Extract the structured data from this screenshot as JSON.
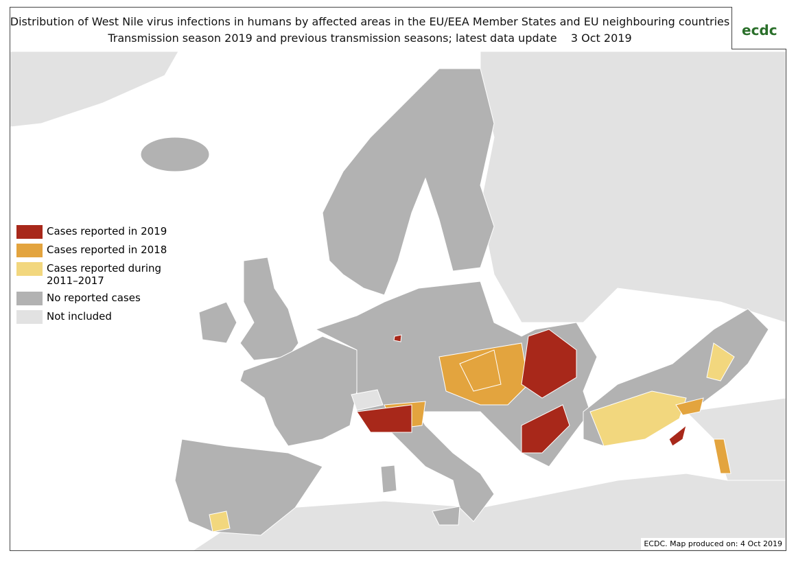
{
  "header": {
    "title": "Distribution of West Nile virus infections in humans by affected areas in the EU/EEA Member States and EU neighbouring countries",
    "subtitle": "Transmission season 2019 and previous transmission seasons; latest data update",
    "date": "3 Oct 2019"
  },
  "logo": {
    "text": "ecdc"
  },
  "legend": {
    "items": [
      {
        "label": "Cases reported in 2019",
        "color": "#a8281a"
      },
      {
        "label": "Cases reported in 2018",
        "color": "#e3a43e"
      },
      {
        "label": "Cases reported during 2011–2017",
        "color": "#f2d77e"
      },
      {
        "label": "No reported cases",
        "color": "#b2b2b2"
      },
      {
        "label": "Not included",
        "color": "#e2e2e2"
      }
    ]
  },
  "footer": {
    "text": "ECDC. Map produced on: 4 Oct 2019"
  }
}
